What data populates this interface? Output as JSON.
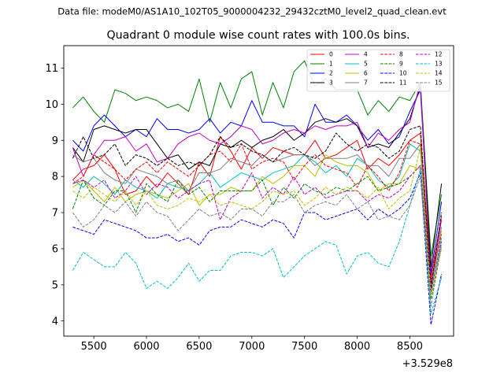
{
  "page": {
    "suptitle": "Data file: modeM0/AS1A10_102T05_9000004232_29432cztM0_level2_quad_clean.evt",
    "title": "Quadrant 0 module wise count rates with 100.0s bins.",
    "offset_label": "+3.529e8"
  },
  "chart_data": {
    "type": "line",
    "title": "Quadrant 0 module wise count rates with 100.0s bins.",
    "xlabel": "",
    "ylabel": "",
    "x_offset": 352900000,
    "xlim": [
      5215,
      8915
    ],
    "ylim": [
      3.58,
      11.62
    ],
    "xticks": [
      5500,
      6000,
      6500,
      7000,
      7500,
      8000,
      8500
    ],
    "xtick_labels": [
      "5500",
      "6000",
      "6500",
      "7000",
      "7500",
      "8000",
      "8500"
    ],
    "yticks": [
      4,
      5,
      6,
      7,
      8,
      9,
      10,
      11
    ],
    "ytick_labels": [
      "4",
      "5",
      "6",
      "7",
      "8",
      "9",
      "10",
      "11"
    ],
    "legend_position": "top-right",
    "x": [
      5300,
      5400,
      5500,
      5600,
      5700,
      5800,
      5900,
      6000,
      6100,
      6200,
      6300,
      6400,
      6500,
      6600,
      6700,
      6800,
      6900,
      7000,
      7100,
      7200,
      7300,
      7400,
      7500,
      7600,
      7700,
      7800,
      7900,
      8000,
      8100,
      8200,
      8300,
      8400,
      8500,
      8600,
      8700,
      8800
    ],
    "series": [
      {
        "name": "0",
        "color": "#ff0000",
        "dash": "solid",
        "values": [
          7.9,
          8.2,
          8.3,
          8.6,
          8.2,
          7.5,
          7.6,
          8.0,
          7.7,
          8.1,
          7.8,
          7.5,
          8.4,
          8.0,
          9.1,
          8.7,
          8.2,
          8.8,
          8.5,
          8.8,
          8.7,
          8.6,
          8.6,
          9.0,
          8.5,
          8.6,
          8.8,
          9.0,
          8.2,
          8.5,
          8.3,
          8.6,
          9.0,
          9.2,
          5.2,
          6.9
        ]
      },
      {
        "name": "1",
        "color": "#008000",
        "dash": "solid",
        "values": [
          9.9,
          10.2,
          9.8,
          9.5,
          10.4,
          10.3,
          10.1,
          10.2,
          10.1,
          9.9,
          10.0,
          9.8,
          10.7,
          9.5,
          10.6,
          9.9,
          10.7,
          10.9,
          9.7,
          10.6,
          9.9,
          10.9,
          11.2,
          10.5,
          10.7,
          10.4,
          10.4,
          10.4,
          9.7,
          10.1,
          9.8,
          10.2,
          10.1,
          10.6,
          5.8,
          7.5
        ]
      },
      {
        "name": "2",
        "color": "#0000ff",
        "dash": "solid",
        "values": [
          9.0,
          8.7,
          9.4,
          9.7,
          9.4,
          9.1,
          9.3,
          9.1,
          9.6,
          9.3,
          9.3,
          9.2,
          9.3,
          9.6,
          9.2,
          9.5,
          9.4,
          10.1,
          9.5,
          9.5,
          9.4,
          9.4,
          9.1,
          10.0,
          9.5,
          9.5,
          9.7,
          9.4,
          9.0,
          9.3,
          8.9,
          9.1,
          9.8,
          10.4,
          5.3,
          7.3
        ]
      },
      {
        "name": "3",
        "color": "#000000",
        "dash": "solid",
        "values": [
          8.8,
          8.4,
          9.3,
          9.4,
          9.3,
          9.2,
          9.3,
          9.3,
          8.9,
          8.5,
          8.6,
          8.2,
          8.4,
          8.3,
          8.9,
          8.8,
          9.0,
          8.8,
          9.0,
          9.1,
          9.3,
          9.0,
          9.2,
          9.5,
          9.6,
          9.5,
          9.6,
          9.4,
          8.8,
          8.9,
          8.8,
          9.2,
          9.6,
          10.5,
          5.5,
          7.8
        ]
      },
      {
        "name": "4",
        "color": "#c000c0",
        "dash": "solid",
        "values": [
          8.8,
          8.0,
          8.6,
          9.0,
          9.0,
          9.1,
          8.7,
          8.9,
          8.4,
          8.5,
          8.9,
          9.1,
          9.2,
          9.0,
          8.9,
          9.1,
          9.4,
          9.3,
          8.9,
          9.0,
          9.2,
          9.3,
          9.2,
          9.4,
          9.3,
          9.4,
          9.4,
          9.5,
          8.8,
          9.2,
          9.0,
          9.3,
          9.5,
          10.6,
          5.0,
          6.8
        ]
      },
      {
        "name": "5",
        "color": "#00bfbf",
        "dash": "solid",
        "values": [
          7.9,
          7.7,
          8.0,
          7.8,
          7.5,
          7.9,
          7.7,
          7.6,
          7.4,
          7.8,
          7.7,
          7.6,
          7.8,
          8.1,
          7.7,
          7.9,
          8.1,
          8.0,
          7.9,
          8.1,
          8.2,
          8.3,
          8.6,
          8.4,
          8.1,
          8.3,
          8.0,
          8.5,
          8.3,
          7.9,
          7.7,
          8.0,
          8.9,
          8.7,
          4.8,
          6.3
        ]
      },
      {
        "name": "6",
        "color": "#bfbf00",
        "dash": "solid",
        "values": [
          7.7,
          7.9,
          7.6,
          7.3,
          7.7,
          7.3,
          7.5,
          7.6,
          7.5,
          7.4,
          7.6,
          7.8,
          7.2,
          7.5,
          7.5,
          7.7,
          7.6,
          7.6,
          8.0,
          7.8,
          8.0,
          8.3,
          8.3,
          8.0,
          8.6,
          8.4,
          8.3,
          8.3,
          8.1,
          7.6,
          7.8,
          7.8,
          8.3,
          8.2,
          4.9,
          6.5
        ]
      },
      {
        "name": "7",
        "color": "#808080",
        "dash": "solid",
        "values": [
          8.6,
          8.4,
          8.5,
          8.1,
          7.9,
          7.8,
          8.2,
          8.1,
          8.0,
          7.8,
          7.9,
          7.6,
          8.1,
          8.1,
          8.2,
          8.5,
          8.4,
          8.3,
          8.6,
          8.4,
          8.5,
          8.6,
          8.6,
          8.3,
          8.5,
          8.5,
          8.5,
          8.6,
          8.3,
          8.3,
          8.0,
          8.5,
          8.5,
          8.9,
          4.9,
          6.6
        ]
      },
      {
        "name": "8",
        "color": "#ff0000",
        "dash": "dashed",
        "values": [
          7.8,
          8.0,
          8.6,
          8.4,
          8.2,
          7.9,
          8.2,
          8.4,
          8.1,
          8.4,
          8.2,
          8.0,
          8.3,
          8.6,
          8.7,
          8.4,
          8.9,
          8.2,
          8.4,
          8.5,
          8.4,
          7.9,
          8.3,
          8.6,
          8.3,
          8.2,
          8.1,
          7.7,
          8.3,
          8.0,
          7.6,
          8.1,
          9.0,
          8.9,
          5.1,
          6.4
        ]
      },
      {
        "name": "9",
        "color": "#008000",
        "dash": "dashed",
        "values": [
          7.1,
          7.9,
          7.4,
          7.2,
          7.6,
          7.6,
          7.0,
          7.8,
          7.5,
          7.3,
          7.9,
          7.5,
          7.7,
          7.3,
          7.6,
          7.6,
          7.6,
          7.6,
          7.9,
          7.2,
          7.7,
          7.4,
          7.8,
          7.6,
          7.5,
          7.7,
          7.6,
          7.8,
          8.0,
          7.6,
          7.7,
          7.8,
          8.0,
          8.3,
          4.6,
          6.1
        ]
      },
      {
        "name": "10",
        "color": "#0000ff",
        "dash": "dashed",
        "values": [
          6.6,
          6.5,
          6.4,
          6.8,
          6.7,
          6.6,
          6.5,
          6.3,
          6.3,
          6.4,
          6.2,
          6.3,
          6.1,
          6.5,
          6.6,
          6.6,
          6.8,
          6.7,
          6.6,
          6.8,
          6.7,
          6.3,
          7.0,
          7.0,
          6.8,
          6.9,
          7.0,
          7.1,
          6.8,
          7.1,
          6.9,
          7.1,
          7.4,
          8.1,
          3.9,
          5.3
        ]
      },
      {
        "name": "11",
        "color": "#000000",
        "dash": "dashed",
        "values": [
          8.5,
          9.1,
          8.5,
          8.6,
          8.9,
          8.3,
          8.6,
          8.5,
          8.3,
          8.5,
          8.3,
          8.4,
          8.3,
          8.6,
          9.1,
          8.8,
          8.9,
          8.7,
          8.6,
          8.4,
          8.7,
          8.8,
          8.6,
          8.5,
          8.7,
          9.2,
          8.9,
          8.7,
          8.9,
          8.8,
          8.5,
          8.7,
          9.3,
          9.4,
          4.9,
          7.0
        ]
      },
      {
        "name": "12",
        "color": "#c000c0",
        "dash": "dashed",
        "values": [
          7.8,
          7.9,
          7.7,
          7.9,
          7.4,
          7.6,
          8.0,
          7.5,
          7.8,
          7.7,
          7.4,
          7.6,
          7.8,
          7.9,
          6.8,
          7.4,
          7.6,
          8.1,
          7.4,
          7.7,
          7.5,
          8.0,
          7.5,
          7.7,
          7.4,
          7.5,
          7.6,
          7.6,
          7.3,
          7.5,
          7.4,
          7.6,
          8.0,
          8.3,
          4.8,
          6.2
        ]
      },
      {
        "name": "13",
        "color": "#00bfbf",
        "dash": "dashed",
        "values": [
          5.4,
          5.9,
          5.7,
          5.5,
          5.5,
          5.9,
          5.6,
          4.9,
          5.1,
          4.9,
          5.2,
          5.6,
          5.1,
          5.4,
          5.4,
          5.8,
          5.9,
          5.9,
          5.8,
          6.0,
          5.2,
          5.5,
          5.8,
          6.0,
          6.2,
          6.1,
          5.3,
          5.8,
          5.9,
          5.6,
          5.5,
          6.2,
          7.2,
          8.2,
          4.2,
          5.2
        ]
      },
      {
        "name": "14",
        "color": "#bfbf00",
        "dash": "dashed",
        "values": [
          7.6,
          7.4,
          7.7,
          7.5,
          7.3,
          7.6,
          7.2,
          7.6,
          7.2,
          7.1,
          7.2,
          7.4,
          7.3,
          7.5,
          7.2,
          7.3,
          7.2,
          7.1,
          7.3,
          7.6,
          7.5,
          7.6,
          7.2,
          7.4,
          7.7,
          7.5,
          7.7,
          7.6,
          7.4,
          7.7,
          7.1,
          7.4,
          7.6,
          8.8,
          4.7,
          6.0
        ]
      },
      {
        "name": "15",
        "color": "#808080",
        "dash": "dashed",
        "values": [
          7.0,
          6.6,
          6.8,
          7.2,
          7.0,
          7.3,
          6.9,
          7.3,
          7.0,
          6.9,
          6.5,
          6.8,
          7.1,
          6.9,
          7.0,
          6.8,
          7.1,
          7.1,
          6.9,
          7.3,
          7.3,
          7.5,
          7.0,
          7.2,
          7.3,
          7.2,
          7.5,
          7.1,
          7.3,
          6.8,
          6.9,
          6.8,
          7.2,
          8.0,
          4.4,
          6.1
        ]
      }
    ]
  }
}
